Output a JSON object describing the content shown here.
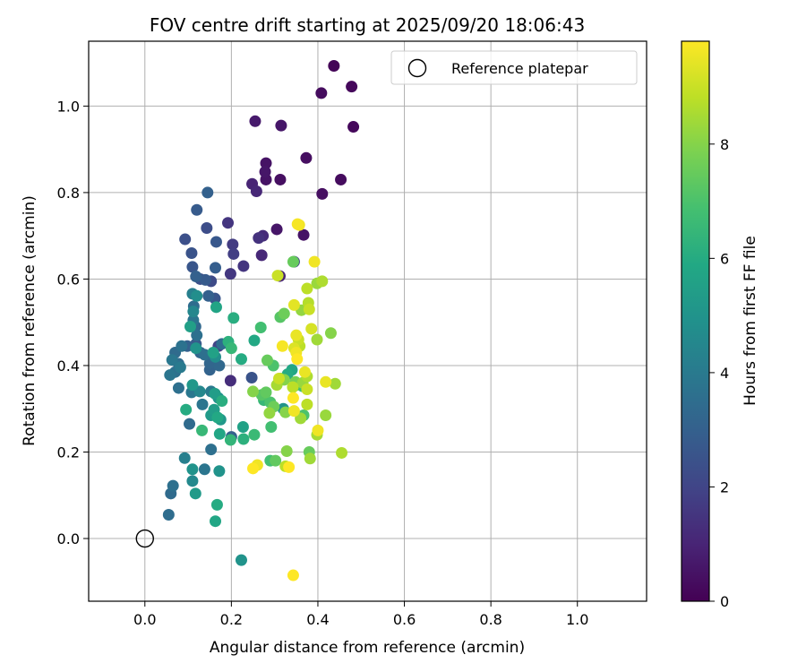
{
  "chart_data": {
    "type": "scatter",
    "title": "FOV centre drift starting at 2025/09/20 18:06:43",
    "xlabel": "Angular distance from reference (arcmin)",
    "ylabel": "Rotation from reference (arcmin)",
    "colorbar_label": "Hours from first FF file",
    "xlim": [
      -0.13,
      1.16
    ],
    "ylim": [
      -0.145,
      1.15
    ],
    "xticks": [
      0.0,
      0.2,
      0.4,
      0.6,
      0.8,
      1.0
    ],
    "xtick_labels": [
      "0.0",
      "0.2",
      "0.4",
      "0.6",
      "0.8",
      "1.0"
    ],
    "yticks": [
      0.0,
      0.2,
      0.4,
      0.6,
      0.8,
      1.0
    ],
    "ytick_labels": [
      "0.0",
      "0.2",
      "0.4",
      "0.6",
      "0.8",
      "1.0"
    ],
    "grid": true,
    "colormap": "viridis",
    "color_range": [
      0,
      9.8
    ],
    "colorbar_ticks": [
      0,
      2,
      4,
      6,
      8
    ],
    "colorbar_tick_labels": [
      "0",
      "2",
      "4",
      "6",
      "8"
    ],
    "legend": {
      "position": "top-right",
      "label": "Reference platepar"
    },
    "reference_point": {
      "x": 0.0,
      "y": 0.0
    },
    "points": [
      {
        "x": 0.437,
        "y": 1.093,
        "h": 0.1
      },
      {
        "x": 0.478,
        "y": 1.045,
        "h": 0.2
      },
      {
        "x": 0.408,
        "y": 1.03,
        "h": 0.3
      },
      {
        "x": 0.482,
        "y": 0.952,
        "h": 0.2
      },
      {
        "x": 0.255,
        "y": 0.965,
        "h": 0.7
      },
      {
        "x": 0.315,
        "y": 0.955,
        "h": 0.6
      },
      {
        "x": 0.373,
        "y": 0.88,
        "h": 0.4
      },
      {
        "x": 0.28,
        "y": 0.868,
        "h": 0.5
      },
      {
        "x": 0.278,
        "y": 0.848,
        "h": 0.6
      },
      {
        "x": 0.28,
        "y": 0.83,
        "h": 0.5
      },
      {
        "x": 0.313,
        "y": 0.83,
        "h": 0.4
      },
      {
        "x": 0.453,
        "y": 0.83,
        "h": 0.3
      },
      {
        "x": 0.248,
        "y": 0.82,
        "h": 1.0
      },
      {
        "x": 0.258,
        "y": 0.803,
        "h": 1.1
      },
      {
        "x": 0.41,
        "y": 0.797,
        "h": 0.4
      },
      {
        "x": 0.145,
        "y": 0.8,
        "h": 3.0
      },
      {
        "x": 0.12,
        "y": 0.76,
        "h": 2.8
      },
      {
        "x": 0.192,
        "y": 0.73,
        "h": 1.5
      },
      {
        "x": 0.143,
        "y": 0.718,
        "h": 2.3
      },
      {
        "x": 0.305,
        "y": 0.715,
        "h": 0.6
      },
      {
        "x": 0.367,
        "y": 0.702,
        "h": 0.5
      },
      {
        "x": 0.273,
        "y": 0.7,
        "h": 1.2
      },
      {
        "x": 0.263,
        "y": 0.695,
        "h": 1.4
      },
      {
        "x": 0.093,
        "y": 0.692,
        "h": 2.4
      },
      {
        "x": 0.165,
        "y": 0.686,
        "h": 2.7
      },
      {
        "x": 0.203,
        "y": 0.68,
        "h": 1.7
      },
      {
        "x": 0.108,
        "y": 0.66,
        "h": 2.5
      },
      {
        "x": 0.205,
        "y": 0.658,
        "h": 1.8
      },
      {
        "x": 0.27,
        "y": 0.655,
        "h": 1.1
      },
      {
        "x": 0.345,
        "y": 0.64,
        "h": 1.9
      },
      {
        "x": 0.228,
        "y": 0.63,
        "h": 1.5
      },
      {
        "x": 0.11,
        "y": 0.628,
        "h": 2.6
      },
      {
        "x": 0.163,
        "y": 0.626,
        "h": 2.9
      },
      {
        "x": 0.198,
        "y": 0.612,
        "h": 1.6
      },
      {
        "x": 0.312,
        "y": 0.607,
        "h": 1.0
      },
      {
        "x": 0.118,
        "y": 0.606,
        "h": 3.0
      },
      {
        "x": 0.128,
        "y": 0.6,
        "h": 2.4
      },
      {
        "x": 0.14,
        "y": 0.598,
        "h": 2.8
      },
      {
        "x": 0.153,
        "y": 0.595,
        "h": 2.2
      },
      {
        "x": 0.11,
        "y": 0.566,
        "h": 4.2
      },
      {
        "x": 0.12,
        "y": 0.561,
        "h": 4.8
      },
      {
        "x": 0.147,
        "y": 0.561,
        "h": 3.0
      },
      {
        "x": 0.162,
        "y": 0.555,
        "h": 2.6
      },
      {
        "x": 0.113,
        "y": 0.537,
        "h": 3.5
      },
      {
        "x": 0.112,
        "y": 0.525,
        "h": 4.5
      },
      {
        "x": 0.165,
        "y": 0.535,
        "h": 5.7
      },
      {
        "x": 0.112,
        "y": 0.505,
        "h": 3.8
      },
      {
        "x": 0.117,
        "y": 0.49,
        "h": 3.3
      },
      {
        "x": 0.105,
        "y": 0.49,
        "h": 5.5
      },
      {
        "x": 0.12,
        "y": 0.47,
        "h": 3.6
      },
      {
        "x": 0.07,
        "y": 0.43,
        "h": 3.4
      },
      {
        "x": 0.085,
        "y": 0.445,
        "h": 3.7
      },
      {
        "x": 0.098,
        "y": 0.445,
        "h": 3.0
      },
      {
        "x": 0.118,
        "y": 0.45,
        "h": 2.8
      },
      {
        "x": 0.128,
        "y": 0.43,
        "h": 3.2
      },
      {
        "x": 0.118,
        "y": 0.44,
        "h": 5.0
      },
      {
        "x": 0.138,
        "y": 0.425,
        "h": 3.6
      },
      {
        "x": 0.15,
        "y": 0.405,
        "h": 3.2
      },
      {
        "x": 0.15,
        "y": 0.39,
        "h": 3.1
      },
      {
        "x": 0.063,
        "y": 0.413,
        "h": 3.9
      },
      {
        "x": 0.078,
        "y": 0.404,
        "h": 3.5
      },
      {
        "x": 0.082,
        "y": 0.396,
        "h": 4.0
      },
      {
        "x": 0.07,
        "y": 0.385,
        "h": 3.6
      },
      {
        "x": 0.058,
        "y": 0.378,
        "h": 3.8
      },
      {
        "x": 0.17,
        "y": 0.445,
        "h": 2.0
      },
      {
        "x": 0.178,
        "y": 0.45,
        "h": 3.5
      },
      {
        "x": 0.193,
        "y": 0.455,
        "h": 6.2
      },
      {
        "x": 0.158,
        "y": 0.43,
        "h": 5.6
      },
      {
        "x": 0.2,
        "y": 0.44,
        "h": 6.5
      },
      {
        "x": 0.163,
        "y": 0.42,
        "h": 4.8
      },
      {
        "x": 0.172,
        "y": 0.4,
        "h": 3.3
      },
      {
        "x": 0.198,
        "y": 0.365,
        "h": 1.3
      },
      {
        "x": 0.223,
        "y": 0.415,
        "h": 6.0
      },
      {
        "x": 0.247,
        "y": 0.372,
        "h": 2.5
      },
      {
        "x": 0.253,
        "y": 0.458,
        "h": 5.9
      },
      {
        "x": 0.268,
        "y": 0.488,
        "h": 6.8
      },
      {
        "x": 0.205,
        "y": 0.51,
        "h": 6.1
      },
      {
        "x": 0.078,
        "y": 0.348,
        "h": 3.6
      },
      {
        "x": 0.108,
        "y": 0.338,
        "h": 3.9
      },
      {
        "x": 0.11,
        "y": 0.355,
        "h": 5.2
      },
      {
        "x": 0.127,
        "y": 0.34,
        "h": 4.5
      },
      {
        "x": 0.153,
        "y": 0.34,
        "h": 4.0
      },
      {
        "x": 0.162,
        "y": 0.335,
        "h": 5.4
      },
      {
        "x": 0.178,
        "y": 0.318,
        "h": 6.1
      },
      {
        "x": 0.17,
        "y": 0.325,
        "h": 5.0
      },
      {
        "x": 0.133,
        "y": 0.31,
        "h": 3.8
      },
      {
        "x": 0.095,
        "y": 0.298,
        "h": 6.0
      },
      {
        "x": 0.16,
        "y": 0.298,
        "h": 5.4
      },
      {
        "x": 0.153,
        "y": 0.285,
        "h": 5.3
      },
      {
        "x": 0.168,
        "y": 0.28,
        "h": 5.9
      },
      {
        "x": 0.175,
        "y": 0.275,
        "h": 5.2
      },
      {
        "x": 0.103,
        "y": 0.265,
        "h": 3.4
      },
      {
        "x": 0.132,
        "y": 0.25,
        "h": 6.5
      },
      {
        "x": 0.173,
        "y": 0.242,
        "h": 5.8
      },
      {
        "x": 0.2,
        "y": 0.235,
        "h": 3.0
      },
      {
        "x": 0.198,
        "y": 0.228,
        "h": 6.4
      },
      {
        "x": 0.227,
        "y": 0.258,
        "h": 5.6
      },
      {
        "x": 0.228,
        "y": 0.23,
        "h": 6.2
      },
      {
        "x": 0.253,
        "y": 0.24,
        "h": 6.6
      },
      {
        "x": 0.153,
        "y": 0.206,
        "h": 3.6
      },
      {
        "x": 0.092,
        "y": 0.186,
        "h": 4.2
      },
      {
        "x": 0.11,
        "y": 0.16,
        "h": 5.0
      },
      {
        "x": 0.138,
        "y": 0.16,
        "h": 3.8
      },
      {
        "x": 0.172,
        "y": 0.156,
        "h": 5.0
      },
      {
        "x": 0.11,
        "y": 0.133,
        "h": 4.6
      },
      {
        "x": 0.065,
        "y": 0.122,
        "h": 3.6
      },
      {
        "x": 0.06,
        "y": 0.104,
        "h": 3.4
      },
      {
        "x": 0.117,
        "y": 0.104,
        "h": 5.3
      },
      {
        "x": 0.167,
        "y": 0.078,
        "h": 6.0
      },
      {
        "x": 0.055,
        "y": 0.055,
        "h": 3.5
      },
      {
        "x": 0.163,
        "y": 0.04,
        "h": 5.8
      },
      {
        "x": 0.223,
        "y": -0.05,
        "h": 5.0
      },
      {
        "x": 0.343,
        "y": -0.085,
        "h": 9.8
      },
      {
        "x": 0.353,
        "y": 0.727,
        "h": 9.7
      },
      {
        "x": 0.357,
        "y": 0.725,
        "h": 9.6
      },
      {
        "x": 0.343,
        "y": 0.64,
        "h": 7.5
      },
      {
        "x": 0.392,
        "y": 0.64,
        "h": 9.6
      },
      {
        "x": 0.307,
        "y": 0.608,
        "h": 9.0
      },
      {
        "x": 0.398,
        "y": 0.59,
        "h": 8.3
      },
      {
        "x": 0.41,
        "y": 0.595,
        "h": 8.6
      },
      {
        "x": 0.375,
        "y": 0.578,
        "h": 8.8
      },
      {
        "x": 0.378,
        "y": 0.545,
        "h": 8.7
      },
      {
        "x": 0.345,
        "y": 0.54,
        "h": 9.4
      },
      {
        "x": 0.362,
        "y": 0.528,
        "h": 8.2
      },
      {
        "x": 0.38,
        "y": 0.53,
        "h": 9.0
      },
      {
        "x": 0.322,
        "y": 0.52,
        "h": 7.6
      },
      {
        "x": 0.313,
        "y": 0.512,
        "h": 7.2
      },
      {
        "x": 0.385,
        "y": 0.485,
        "h": 9.2
      },
      {
        "x": 0.35,
        "y": 0.47,
        "h": 9.5
      },
      {
        "x": 0.355,
        "y": 0.46,
        "h": 9.0
      },
      {
        "x": 0.398,
        "y": 0.46,
        "h": 8.4
      },
      {
        "x": 0.43,
        "y": 0.475,
        "h": 8.0
      },
      {
        "x": 0.318,
        "y": 0.445,
        "h": 9.7
      },
      {
        "x": 0.345,
        "y": 0.44,
        "h": 9.3
      },
      {
        "x": 0.35,
        "y": 0.43,
        "h": 9.6
      },
      {
        "x": 0.358,
        "y": 0.445,
        "h": 8.8
      },
      {
        "x": 0.352,
        "y": 0.415,
        "h": 9.8
      },
      {
        "x": 0.283,
        "y": 0.412,
        "h": 7.5
      },
      {
        "x": 0.297,
        "y": 0.4,
        "h": 7.0
      },
      {
        "x": 0.33,
        "y": 0.38,
        "h": 6.0
      },
      {
        "x": 0.34,
        "y": 0.39,
        "h": 5.8
      },
      {
        "x": 0.37,
        "y": 0.385,
        "h": 9.5
      },
      {
        "x": 0.375,
        "y": 0.375,
        "h": 8.6
      },
      {
        "x": 0.365,
        "y": 0.36,
        "h": 8.3
      },
      {
        "x": 0.31,
        "y": 0.37,
        "h": 9.0
      },
      {
        "x": 0.305,
        "y": 0.355,
        "h": 8.5
      },
      {
        "x": 0.313,
        "y": 0.37,
        "h": 7.6
      },
      {
        "x": 0.322,
        "y": 0.367,
        "h": 8.0
      },
      {
        "x": 0.348,
        "y": 0.362,
        "h": 7.8
      },
      {
        "x": 0.342,
        "y": 0.35,
        "h": 8.8
      },
      {
        "x": 0.35,
        "y": 0.355,
        "h": 5.2
      },
      {
        "x": 0.365,
        "y": 0.352,
        "h": 6.8
      },
      {
        "x": 0.375,
        "y": 0.345,
        "h": 9.0
      },
      {
        "x": 0.418,
        "y": 0.362,
        "h": 9.5
      },
      {
        "x": 0.44,
        "y": 0.358,
        "h": 8.4
      },
      {
        "x": 0.25,
        "y": 0.34,
        "h": 8.0
      },
      {
        "x": 0.27,
        "y": 0.332,
        "h": 7.2
      },
      {
        "x": 0.28,
        "y": 0.338,
        "h": 7.4
      },
      {
        "x": 0.275,
        "y": 0.32,
        "h": 6.5
      },
      {
        "x": 0.29,
        "y": 0.315,
        "h": 7.0
      },
      {
        "x": 0.298,
        "y": 0.305,
        "h": 7.6
      },
      {
        "x": 0.288,
        "y": 0.29,
        "h": 8.2
      },
      {
        "x": 0.32,
        "y": 0.3,
        "h": 5.0
      },
      {
        "x": 0.325,
        "y": 0.292,
        "h": 8.0
      },
      {
        "x": 0.345,
        "y": 0.295,
        "h": 9.6
      },
      {
        "x": 0.343,
        "y": 0.325,
        "h": 9.8
      },
      {
        "x": 0.375,
        "y": 0.31,
        "h": 8.8
      },
      {
        "x": 0.367,
        "y": 0.285,
        "h": 7.0
      },
      {
        "x": 0.36,
        "y": 0.278,
        "h": 8.4
      },
      {
        "x": 0.418,
        "y": 0.285,
        "h": 8.3
      },
      {
        "x": 0.292,
        "y": 0.258,
        "h": 6.8
      },
      {
        "x": 0.4,
        "y": 0.25,
        "h": 9.6
      },
      {
        "x": 0.398,
        "y": 0.24,
        "h": 8.5
      },
      {
        "x": 0.328,
        "y": 0.202,
        "h": 8.0
      },
      {
        "x": 0.38,
        "y": 0.2,
        "h": 7.5
      },
      {
        "x": 0.382,
        "y": 0.185,
        "h": 8.4
      },
      {
        "x": 0.455,
        "y": 0.198,
        "h": 8.6
      },
      {
        "x": 0.29,
        "y": 0.18,
        "h": 6.8
      },
      {
        "x": 0.302,
        "y": 0.18,
        "h": 7.4
      },
      {
        "x": 0.26,
        "y": 0.17,
        "h": 9.6
      },
      {
        "x": 0.25,
        "y": 0.162,
        "h": 9.8
      },
      {
        "x": 0.325,
        "y": 0.167,
        "h": 8.8
      },
      {
        "x": 0.333,
        "y": 0.165,
        "h": 9.8
      }
    ]
  }
}
